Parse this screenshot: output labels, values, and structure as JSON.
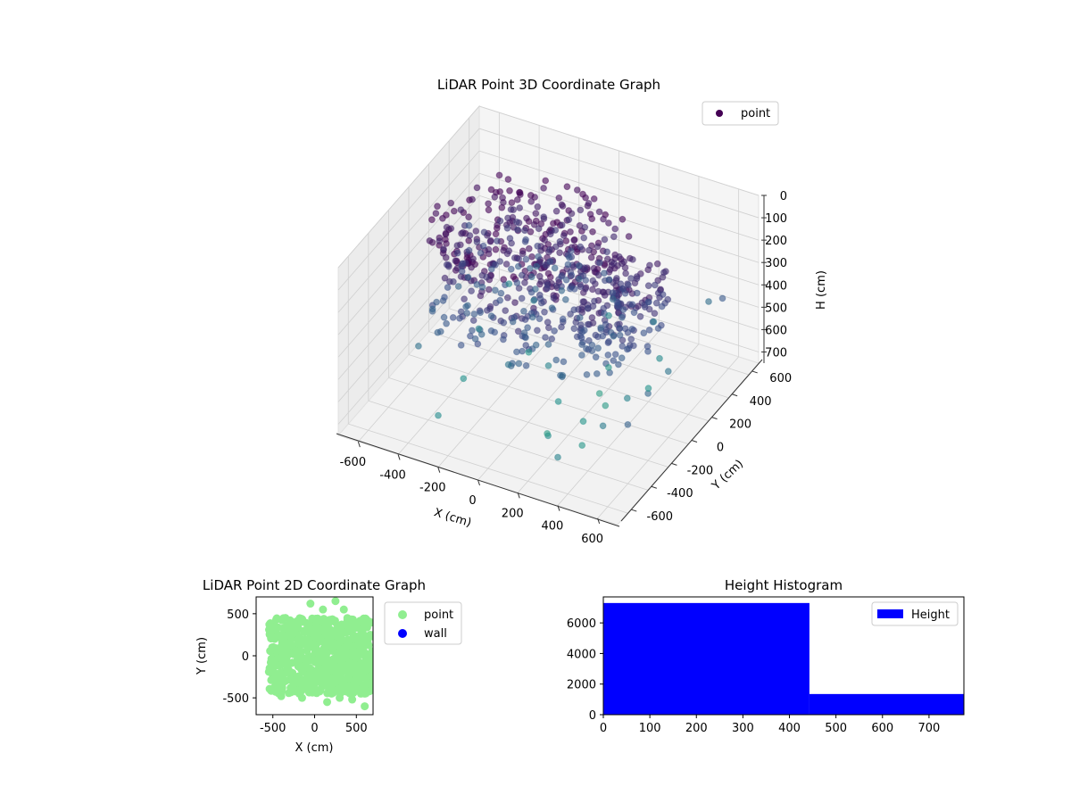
{
  "chart_data": [
    {
      "type": "scatter",
      "title": "LiDAR Point 3D Coordinate Graph",
      "xlabel": "X (cm)",
      "ylabel": "Y (cm)",
      "zlabel": "H (cm)",
      "xlim": [
        -700,
        700
      ],
      "ylim": [
        -700,
        700
      ],
      "zlim": [
        0,
        750
      ],
      "z_inverted": true,
      "xticks": [
        -600,
        -400,
        -200,
        0,
        200,
        400,
        600
      ],
      "yticks": [
        -600,
        -400,
        -200,
        0,
        200,
        400,
        600
      ],
      "zticks": [
        0,
        100,
        200,
        300,
        400,
        500,
        600,
        700
      ],
      "grid": true,
      "legend": {
        "placement": "upper-right",
        "entries": [
          "point"
        ]
      },
      "colormap": "viridis",
      "series": [
        {
          "name": "point",
          "dense_clusters": [
            {
              "x_range": [
                -550,
                350
              ],
              "y_range": [
                -450,
                450
              ],
              "h_range": [
                0,
                450
              ]
            },
            {
              "x_range": [
                200,
                550
              ],
              "y_range": [
                -300,
                300
              ],
              "h_range": [
                100,
                400
              ]
            }
          ],
          "points": [
            [
              -600,
              400,
              350
            ],
            [
              -500,
              -300,
              500
            ],
            [
              -400,
              100,
              600
            ],
            [
              -300,
              -500,
              650
            ],
            [
              -200,
              200,
              700
            ],
            [
              -100,
              -200,
              520
            ],
            [
              0,
              0,
              600
            ],
            [
              100,
              -100,
              680
            ],
            [
              150,
              300,
              720
            ],
            [
              200,
              -400,
              650
            ],
            [
              250,
              -150,
              700
            ],
            [
              300,
              450,
              550
            ],
            [
              350,
              -600,
              600
            ],
            [
              400,
              200,
              690
            ],
            [
              450,
              -350,
              560
            ],
            [
              500,
              600,
              480
            ],
            [
              550,
              100,
              520
            ],
            [
              600,
              -200,
              450
            ],
            [
              620,
              500,
              380
            ],
            [
              650,
              -500,
              420
            ],
            [
              -450,
              500,
              620
            ],
            [
              -350,
              -150,
              680
            ],
            [
              -250,
              350,
              560
            ],
            [
              50,
              500,
              620
            ],
            [
              120,
              -250,
              740
            ],
            [
              180,
              150,
              750
            ],
            [
              260,
              50,
              730
            ],
            [
              320,
              -300,
              710
            ],
            [
              380,
              350,
              640
            ],
            [
              420,
              -50,
              600
            ]
          ]
        }
      ]
    },
    {
      "type": "scatter",
      "title": "LiDAR Point 2D Coordinate Graph",
      "xlabel": "X (cm)",
      "ylabel": "Y (cm)",
      "xlim": [
        -700,
        700
      ],
      "ylim": [
        -700,
        700
      ],
      "xticks": [
        -500,
        0,
        500
      ],
      "yticks": [
        -500,
        0,
        500
      ],
      "grid": false,
      "legend": {
        "placement": "outside-right",
        "entries": [
          "point",
          "wall"
        ]
      },
      "series": [
        {
          "name": "point",
          "color": "#90ee90",
          "dense_region": {
            "x_range": [
              -550,
              700
            ],
            "y_range": [
              -450,
              450
            ]
          },
          "points": [
            [
              -400,
              -480
            ],
            [
              -150,
              -500
            ],
            [
              150,
              -550
            ],
            [
              300,
              -500
            ],
            [
              450,
              -520
            ],
            [
              -350,
              450
            ],
            [
              100,
              550
            ],
            [
              250,
              650
            ],
            [
              350,
              550
            ],
            [
              500,
              380
            ],
            [
              -50,
              620
            ],
            [
              600,
              -600
            ]
          ]
        },
        {
          "name": "wall",
          "color": "#0000ff",
          "points": []
        }
      ]
    },
    {
      "type": "bar",
      "title": "Height Histogram",
      "xlabel": "",
      "ylabel": "",
      "xlim": [
        0,
        775
      ],
      "ylim": [
        0,
        7700
      ],
      "xticks": [
        0,
        100,
        200,
        300,
        400,
        500,
        600,
        700
      ],
      "yticks": [
        0,
        2000,
        4000,
        6000
      ],
      "grid": false,
      "legend": {
        "placement": "upper-right",
        "entries": [
          "Height"
        ]
      },
      "series": [
        {
          "name": "Height",
          "color": "#0000ff",
          "bins": [
            {
              "x0": 0,
              "x1": 443,
              "count": 7300
            },
            {
              "x0": 443,
              "x1": 775,
              "count": 1350
            }
          ]
        }
      ]
    }
  ]
}
